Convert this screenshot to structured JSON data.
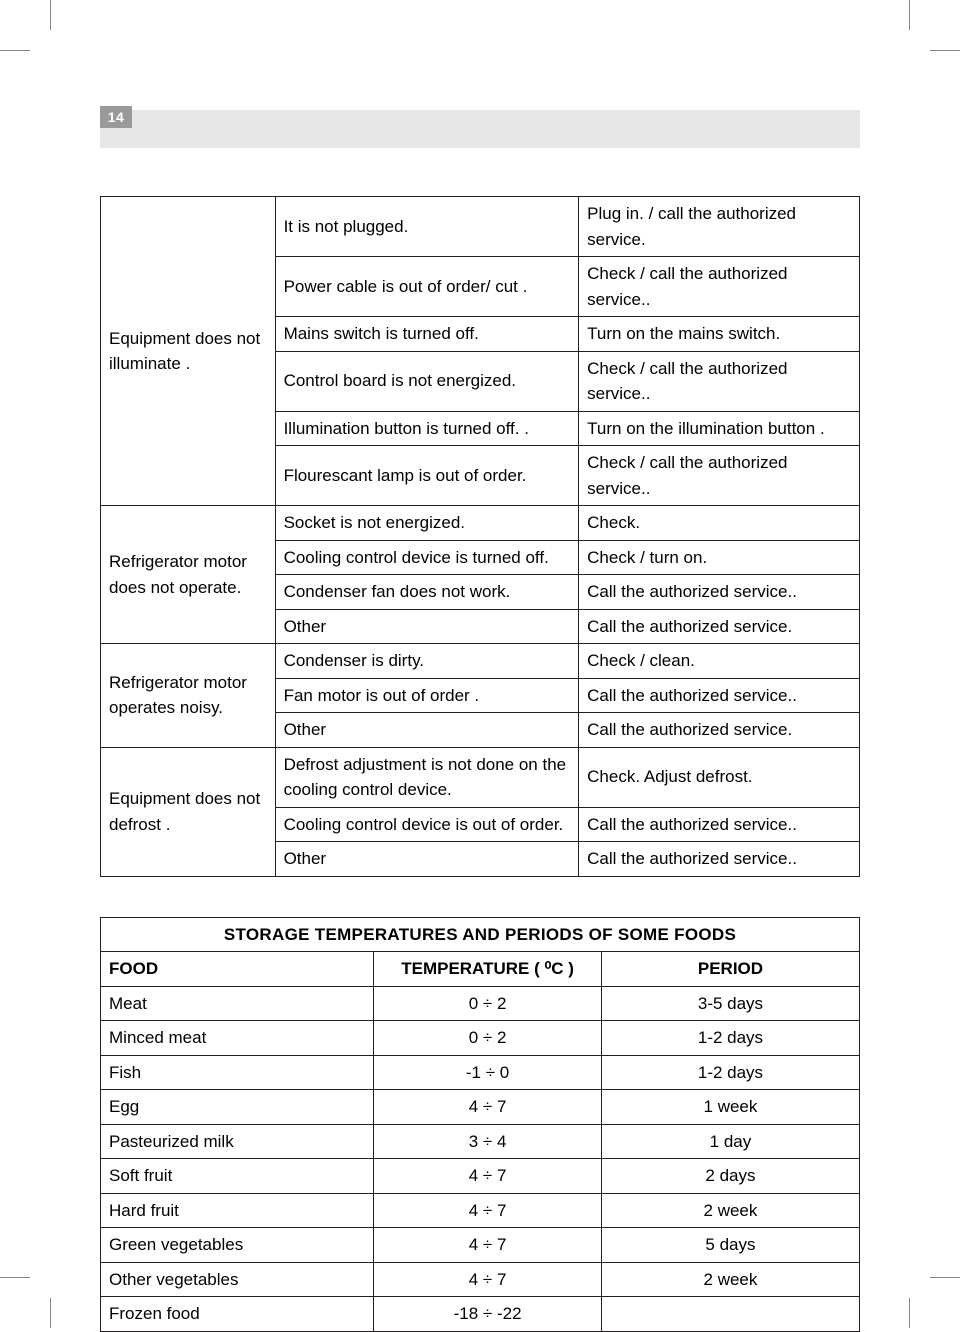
{
  "page_number": "14",
  "troubleshooting": {
    "groups": [
      {
        "issue": "Equipment does not illuminate .",
        "rows": [
          {
            "cause": "It is not plugged.",
            "remedy": "Plug in. / call the authorized service."
          },
          {
            "cause": "Power  cable is out of order/ cut .",
            "remedy": "Check / call the authorized service.."
          },
          {
            "cause": "Mains switch is turned off.",
            "remedy": "Turn on the mains switch."
          },
          {
            "cause": "Control board is not energized.",
            "remedy": "Check / call the authorized service.."
          },
          {
            "cause": "Illumination button is turned off.  .",
            "remedy": "Turn on the illumination button  ."
          },
          {
            "cause": "Flourescant lamp is out of order.",
            "remedy": "Check / call the authorized service.."
          }
        ]
      },
      {
        "issue": "Refrigerator motor does not operate.",
        "rows": [
          {
            "cause": "Socket is not energized.",
            "remedy": "Check."
          },
          {
            "cause": "Cooling control device is  turned off.",
            "remedy": "Check / turn on."
          },
          {
            "cause": "Condenser fan does not work.",
            "remedy": "Call the authorized service.."
          },
          {
            "cause": "Other",
            "remedy": "Call the authorized service."
          }
        ]
      },
      {
        "issue": "Refrigerator motor operates noisy.",
        "rows": [
          {
            "cause": "Condenser is dirty.",
            "remedy": "Check / clean."
          },
          {
            "cause": "Fan motor is out of order .",
            "remedy": "Call the authorized service.."
          },
          {
            "cause": "Other",
            "remedy": "Call the authorized service."
          }
        ]
      },
      {
        "issue": "Equipment does not defrost .",
        "rows": [
          {
            "cause": "Defrost adjustment is not done on the cooling control device.",
            "remedy": "Check. Adjust defrost."
          },
          {
            "cause": "Cooling control device is out of order.",
            "remedy": "Call the authorized service.."
          },
          {
            "cause": "Other",
            "remedy": "Call the authorized service.."
          }
        ]
      }
    ]
  },
  "storage": {
    "title": "STORAGE TEMPERATURES AND   PERIODS OF SOME FOODS",
    "headers": {
      "food": "FOOD",
      "temperature": "TEMPERATURE   ( ⁰C )",
      "period": "PERIOD"
    },
    "rows": [
      {
        "food": "Meat",
        "temp": "0 ÷ 2",
        "period": "3-5 days"
      },
      {
        "food": "Minced meat",
        "temp": "0 ÷ 2",
        "period": "1-2 days"
      },
      {
        "food": "Fish",
        "temp": "-1 ÷ 0",
        "period": "1-2 days"
      },
      {
        "food": "Egg",
        "temp": "4 ÷ 7",
        "period": "1 week"
      },
      {
        "food": "Pasteurized milk",
        "temp": "3 ÷ 4",
        "period": "1 day"
      },
      {
        "food": "Soft fruit",
        "temp": "4 ÷ 7",
        "period": "2 days"
      },
      {
        "food": "Hard fruit",
        "temp": "4 ÷ 7",
        "period": "2 week"
      },
      {
        "food": "Green vegetables",
        "temp": "4 ÷ 7",
        "period": "5 days"
      },
      {
        "food": "Other vegetables",
        "temp": "4 ÷ 7",
        "period": "2 week"
      },
      {
        "food": "Frozen food",
        "temp": "-18 ÷ -22",
        "period": ""
      }
    ]
  },
  "colors": {
    "border": "#231f20",
    "header_band": "#e7e7e7",
    "page_badge": "#9a9a9a",
    "text": "#231f20"
  }
}
